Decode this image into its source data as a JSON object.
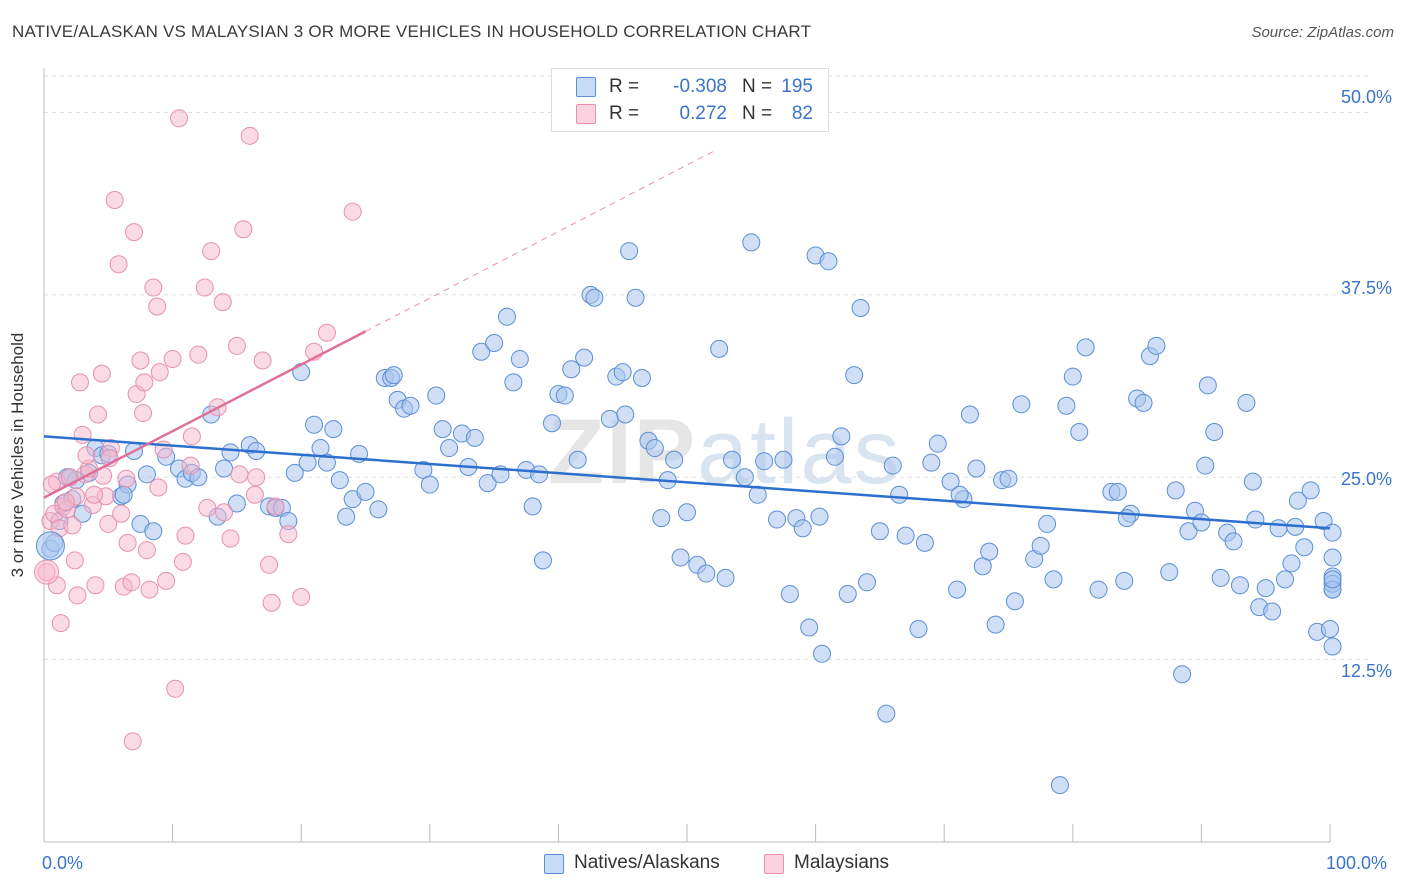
{
  "header": {
    "title": "NATIVE/ALASKAN VS MALAYSIAN 3 OR MORE VEHICLES IN HOUSEHOLD CORRELATION CHART",
    "source": "Source: ZipAtlas.com"
  },
  "watermark": {
    "zip": "ZIP",
    "atlas": "atlas"
  },
  "legend": {
    "rows": [
      {
        "r_label": "R =",
        "r_value": "-0.308",
        "n_label": "N =",
        "n_value": "195",
        "color": "#a9c5ee"
      },
      {
        "r_label": "R =",
        "r_value": "0.272",
        "n_label": "N =",
        "n_value": "82",
        "color": "#f5b8cb"
      }
    ]
  },
  "bottom_legend": [
    {
      "label": "Natives/Alaskans",
      "color": "#a9c5ee"
    },
    {
      "label": "Malaysians",
      "color": "#f5b8cb"
    }
  ],
  "colors": {
    "blue_fill": "#a9c5ee",
    "blue_stroke": "#5b8fd6",
    "blue_line": "#2c6fcf",
    "pink_fill": "#f5b8cb",
    "pink_stroke": "#e890ae",
    "pink_line": "#e0709a",
    "grid": "#dedede",
    "axis_text": "#3a74c8"
  },
  "chart_data": {
    "type": "scatter",
    "title": "NATIVE/ALASKAN VS MALAYSIAN 3 OR MORE VEHICLES IN HOUSEHOLD CORRELATION CHART",
    "xlabel": "",
    "ylabel": "3 or more Vehicles in Household",
    "xlim": [
      0,
      100
    ],
    "ylim": [
      0,
      52.5
    ],
    "x_tick_labels": [
      "0.0%",
      "100.0%"
    ],
    "y_ticks": [
      12.5,
      25.0,
      37.5,
      50.0
    ],
    "y_tick_labels": [
      "12.5%",
      "25.0%",
      "37.5%",
      "50.0%"
    ],
    "grid": true,
    "legend_position": "top-center",
    "series": [
      {
        "name": "Natives/Alaskans",
        "R": -0.308,
        "N": 195,
        "trend": {
          "x": [
            0,
            100
          ],
          "y": [
            27.8,
            21.5
          ]
        },
        "points": [
          [
            0.5,
            20.1
          ],
          [
            0.8,
            20.5
          ],
          [
            1.2,
            22.0
          ],
          [
            1.5,
            23.2
          ],
          [
            1.8,
            25.0
          ],
          [
            2.2,
            23.5
          ],
          [
            2.5,
            24.8
          ],
          [
            3.0,
            22.5
          ],
          [
            3.5,
            25.3
          ],
          [
            4.0,
            27.0
          ],
          [
            4.5,
            26.5
          ],
          [
            5.0,
            26.6
          ],
          [
            6.0,
            23.7
          ],
          [
            6.5,
            24.5
          ],
          [
            7.0,
            26.8
          ],
          [
            7.5,
            21.8
          ],
          [
            8.0,
            25.2
          ],
          [
            8.5,
            21.3
          ],
          [
            9.5,
            26.4
          ],
          [
            10.5,
            25.6
          ],
          [
            11.0,
            24.9
          ],
          [
            11.5,
            25.3
          ],
          [
            12.0,
            25.0
          ],
          [
            13.0,
            29.3
          ],
          [
            13.5,
            22.3
          ],
          [
            14.5,
            26.7
          ],
          [
            15.0,
            23.2
          ],
          [
            16.0,
            27.2
          ],
          [
            16.5,
            26.8
          ],
          [
            17.5,
            23.0
          ],
          [
            18.0,
            22.9
          ],
          [
            18.5,
            22.9
          ],
          [
            19.0,
            22.0
          ],
          [
            19.5,
            25.3
          ],
          [
            20.0,
            32.2
          ],
          [
            21.0,
            28.6
          ],
          [
            21.5,
            27.0
          ],
          [
            22.0,
            26.0
          ],
          [
            22.5,
            28.3
          ],
          [
            23.0,
            24.8
          ],
          [
            23.5,
            22.3
          ],
          [
            24.0,
            23.5
          ],
          [
            24.5,
            26.6
          ],
          [
            25.0,
            24.0
          ],
          [
            26.0,
            22.8
          ],
          [
            26.5,
            31.8
          ],
          [
            27.0,
            31.8
          ],
          [
            27.5,
            30.3
          ],
          [
            28.0,
            29.7
          ],
          [
            28.5,
            29.9
          ],
          [
            29.5,
            25.5
          ],
          [
            30.0,
            24.5
          ],
          [
            30.5,
            30.6
          ],
          [
            31.0,
            28.3
          ],
          [
            31.5,
            27.0
          ],
          [
            32.5,
            28.0
          ],
          [
            33.0,
            25.7
          ],
          [
            33.5,
            27.7
          ],
          [
            34.0,
            33.6
          ],
          [
            34.5,
            24.6
          ],
          [
            35.0,
            34.2
          ],
          [
            35.5,
            25.2
          ],
          [
            36.0,
            36.0
          ],
          [
            36.5,
            31.5
          ],
          [
            37.5,
            25.5
          ],
          [
            38.0,
            23.0
          ],
          [
            38.5,
            25.2
          ],
          [
            38.8,
            19.3
          ],
          [
            39.5,
            28.7
          ],
          [
            40.0,
            30.7
          ],
          [
            40.5,
            30.6
          ],
          [
            41.0,
            32.4
          ],
          [
            41.5,
            26.2
          ],
          [
            42.0,
            33.2
          ],
          [
            42.5,
            37.5
          ],
          [
            42.8,
            37.3
          ],
          [
            44.0,
            29.0
          ],
          [
            44.5,
            31.9
          ],
          [
            45.0,
            32.2
          ],
          [
            45.5,
            40.5
          ],
          [
            46.0,
            37.3
          ],
          [
            46.5,
            31.8
          ],
          [
            47.0,
            27.5
          ],
          [
            47.5,
            27.0
          ],
          [
            48.0,
            22.2
          ],
          [
            48.5,
            24.8
          ],
          [
            49.0,
            26.2
          ],
          [
            49.5,
            19.5
          ],
          [
            50.0,
            22.6
          ],
          [
            50.8,
            19.0
          ],
          [
            51.5,
            18.4
          ],
          [
            52.5,
            33.8
          ],
          [
            53.0,
            18.1
          ],
          [
            54.5,
            25.0
          ],
          [
            55.0,
            41.1
          ],
          [
            55.5,
            23.8
          ],
          [
            56.0,
            26.1
          ],
          [
            57.0,
            22.1
          ],
          [
            57.5,
            26.2
          ],
          [
            58.0,
            17.0
          ],
          [
            58.5,
            22.2
          ],
          [
            59.0,
            21.5
          ],
          [
            59.5,
            14.7
          ],
          [
            60.0,
            40.2
          ],
          [
            60.5,
            12.9
          ],
          [
            61.0,
            39.8
          ],
          [
            61.5,
            26.4
          ],
          [
            62.0,
            27.8
          ],
          [
            62.5,
            17.0
          ],
          [
            63.0,
            32.0
          ],
          [
            63.5,
            36.6
          ],
          [
            64.0,
            17.8
          ],
          [
            65.5,
            8.8
          ],
          [
            66.0,
            25.8
          ],
          [
            66.5,
            23.8
          ],
          [
            67.0,
            21.0
          ],
          [
            68.0,
            14.6
          ],
          [
            68.5,
            20.5
          ],
          [
            69.0,
            26.0
          ],
          [
            69.5,
            27.3
          ],
          [
            70.5,
            24.7
          ],
          [
            71.0,
            17.3
          ],
          [
            71.5,
            23.5
          ],
          [
            72.0,
            29.3
          ],
          [
            72.5,
            25.6
          ],
          [
            73.0,
            18.9
          ],
          [
            73.5,
            19.9
          ],
          [
            74.0,
            14.9
          ],
          [
            74.5,
            24.8
          ],
          [
            75.0,
            24.9
          ],
          [
            75.5,
            16.5
          ],
          [
            76.0,
            30.0
          ],
          [
            77.0,
            19.4
          ],
          [
            77.5,
            20.3
          ],
          [
            78.0,
            21.8
          ],
          [
            78.5,
            18.0
          ],
          [
            79.0,
            3.9
          ],
          [
            80.0,
            31.9
          ],
          [
            80.5,
            28.1
          ],
          [
            81.0,
            33.9
          ],
          [
            82.0,
            17.3
          ],
          [
            83.0,
            24.0
          ],
          [
            83.5,
            24.0
          ],
          [
            84.0,
            17.9
          ],
          [
            84.5,
            22.5
          ],
          [
            85.0,
            30.4
          ],
          [
            85.5,
            30.1
          ],
          [
            86.0,
            33.3
          ],
          [
            86.5,
            34.0
          ],
          [
            87.5,
            18.5
          ],
          [
            88.0,
            24.1
          ],
          [
            88.5,
            11.5
          ],
          [
            89.0,
            21.3
          ],
          [
            89.5,
            22.7
          ],
          [
            90.0,
            21.9
          ],
          [
            90.5,
            31.3
          ],
          [
            91.0,
            28.1
          ],
          [
            91.5,
            18.1
          ],
          [
            92.0,
            21.2
          ],
          [
            92.5,
            20.6
          ],
          [
            93.0,
            17.6
          ],
          [
            93.5,
            30.1
          ],
          [
            94.0,
            24.7
          ],
          [
            94.5,
            16.1
          ],
          [
            95.0,
            17.4
          ],
          [
            95.5,
            15.8
          ],
          [
            96.0,
            21.5
          ],
          [
            96.5,
            18.0
          ],
          [
            97.0,
            19.1
          ],
          [
            97.5,
            23.4
          ],
          [
            98.0,
            20.2
          ],
          [
            98.5,
            24.1
          ],
          [
            99.0,
            14.4
          ],
          [
            99.5,
            22.0
          ],
          [
            100.0,
            14.6
          ],
          [
            100.5,
            21.2
          ],
          [
            101.0,
            13.4
          ],
          [
            101.5,
            17.3
          ],
          [
            102.0,
            18.2
          ],
          [
            102.5,
            17.7
          ],
          [
            103.0,
            17.3
          ],
          [
            103.5,
            19.5
          ],
          [
            104.0,
            18.0
          ],
          [
            2.0,
            25.0
          ],
          [
            6.2,
            23.8
          ],
          [
            14.0,
            25.6
          ],
          [
            20.5,
            26.0
          ],
          [
            27.2,
            32.0
          ],
          [
            37.0,
            33.1
          ],
          [
            45.2,
            29.3
          ],
          [
            53.5,
            26.2
          ],
          [
            60.3,
            22.3
          ],
          [
            65.0,
            21.3
          ],
          [
            71.2,
            23.8
          ],
          [
            79.5,
            29.9
          ],
          [
            84.2,
            22.2
          ],
          [
            90.3,
            25.8
          ],
          [
            94.2,
            22.1
          ],
          [
            97.3,
            21.6
          ]
        ]
      },
      {
        "name": "Malaysians",
        "R": 0.272,
        "N": 82,
        "trend": {
          "x": [
            0,
            25
          ],
          "y": [
            23.6,
            35.0
          ]
        },
        "points": [
          [
            0.2,
            18.5
          ],
          [
            0.5,
            22.0
          ],
          [
            0.8,
            22.5
          ],
          [
            1.0,
            24.7
          ],
          [
            1.2,
            21.5
          ],
          [
            1.5,
            23.0
          ],
          [
            1.8,
            22.8
          ],
          [
            2.0,
            25.0
          ],
          [
            2.2,
            21.7
          ],
          [
            2.5,
            23.7
          ],
          [
            2.8,
            31.5
          ],
          [
            3.0,
            27.9
          ],
          [
            3.2,
            25.2
          ],
          [
            3.5,
            25.6
          ],
          [
            3.8,
            23.1
          ],
          [
            4.0,
            17.6
          ],
          [
            4.2,
            29.3
          ],
          [
            4.5,
            32.1
          ],
          [
            4.8,
            23.7
          ],
          [
            5.0,
            21.8
          ],
          [
            5.2,
            27.0
          ],
          [
            5.5,
            44.0
          ],
          [
            5.8,
            39.6
          ],
          [
            6.0,
            22.5
          ],
          [
            6.2,
            17.5
          ],
          [
            6.5,
            20.5
          ],
          [
            6.8,
            17.8
          ],
          [
            7.0,
            41.8
          ],
          [
            7.2,
            30.7
          ],
          [
            7.5,
            33.0
          ],
          [
            7.8,
            31.5
          ],
          [
            8.0,
            20.0
          ],
          [
            8.2,
            17.3
          ],
          [
            8.5,
            38.0
          ],
          [
            8.8,
            36.7
          ],
          [
            9.0,
            32.2
          ],
          [
            9.5,
            17.9
          ],
          [
            10.0,
            33.1
          ],
          [
            10.5,
            49.6
          ],
          [
            10.8,
            19.2
          ],
          [
            11.0,
            21.0
          ],
          [
            11.5,
            27.8
          ],
          [
            12.0,
            33.4
          ],
          [
            12.5,
            38.0
          ],
          [
            13.0,
            40.5
          ],
          [
            13.5,
            29.8
          ],
          [
            14.0,
            22.6
          ],
          [
            14.5,
            20.8
          ],
          [
            15.0,
            34.0
          ],
          [
            15.5,
            42.0
          ],
          [
            16.0,
            48.4
          ],
          [
            16.5,
            25.0
          ],
          [
            17.0,
            33.0
          ],
          [
            17.5,
            19.0
          ],
          [
            18.0,
            23.0
          ],
          [
            19.0,
            21.1
          ],
          [
            20.0,
            16.8
          ],
          [
            21.0,
            33.6
          ],
          [
            22.0,
            34.9
          ],
          [
            24.0,
            43.2
          ],
          [
            1.3,
            15.0
          ],
          [
            2.6,
            16.9
          ],
          [
            3.9,
            23.8
          ],
          [
            5.1,
            26.3
          ],
          [
            6.4,
            24.9
          ],
          [
            7.7,
            29.4
          ],
          [
            8.9,
            24.3
          ],
          [
            10.2,
            10.5
          ],
          [
            11.4,
            25.8
          ],
          [
            12.7,
            22.9
          ],
          [
            13.9,
            37.0
          ],
          [
            15.2,
            25.2
          ],
          [
            16.4,
            23.8
          ],
          [
            17.7,
            16.4
          ],
          [
            1.0,
            17.6
          ],
          [
            2.4,
            19.3
          ],
          [
            3.3,
            26.5
          ],
          [
            4.6,
            25.1
          ],
          [
            6.9,
            6.9
          ],
          [
            9.3,
            26.9
          ],
          [
            0.6,
            24.5
          ],
          [
            1.7,
            23.3
          ]
        ]
      }
    ]
  }
}
